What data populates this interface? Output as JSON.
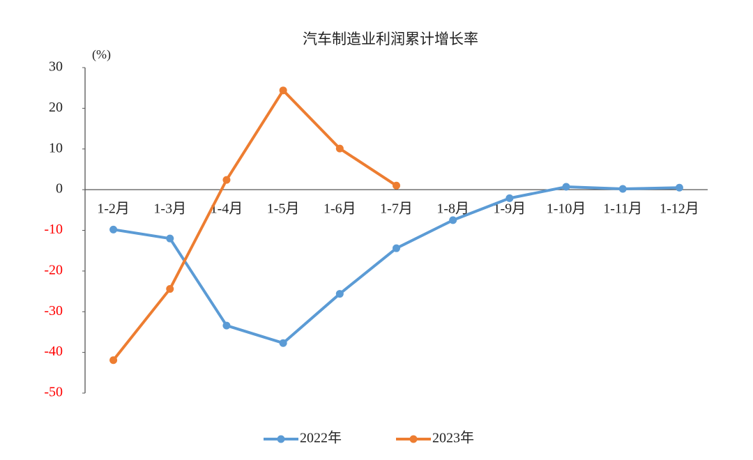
{
  "chart_data": {
    "type": "line",
    "title": "汽车制造业利润累计增长率",
    "y_unit": "(%)",
    "categories": [
      "1-2月",
      "1-3月",
      "1-4月",
      "1-5月",
      "1-6月",
      "1-7月",
      "1-8月",
      "1-9月",
      "1-10月",
      "1-11月",
      "1-12月"
    ],
    "series": [
      {
        "name": "2022年",
        "color": "#5b9bd5",
        "values": [
          -9.8,
          -12.0,
          -33.4,
          -37.7,
          -25.6,
          -14.4,
          -7.5,
          -2.1,
          0.7,
          0.2,
          0.5
        ]
      },
      {
        "name": "2023年",
        "color": "#ed7d31",
        "values": [
          -41.9,
          -24.4,
          2.4,
          24.4,
          10.1,
          1.0,
          null,
          null,
          null,
          null,
          null
        ]
      }
    ],
    "ylim": [
      -50,
      30
    ],
    "yticks": [
      -50,
      -40,
      -30,
      -20,
      -10,
      0,
      10,
      20,
      30
    ],
    "negative_tick_color": "#ff0000",
    "legend": "bottom",
    "grid": false
  }
}
